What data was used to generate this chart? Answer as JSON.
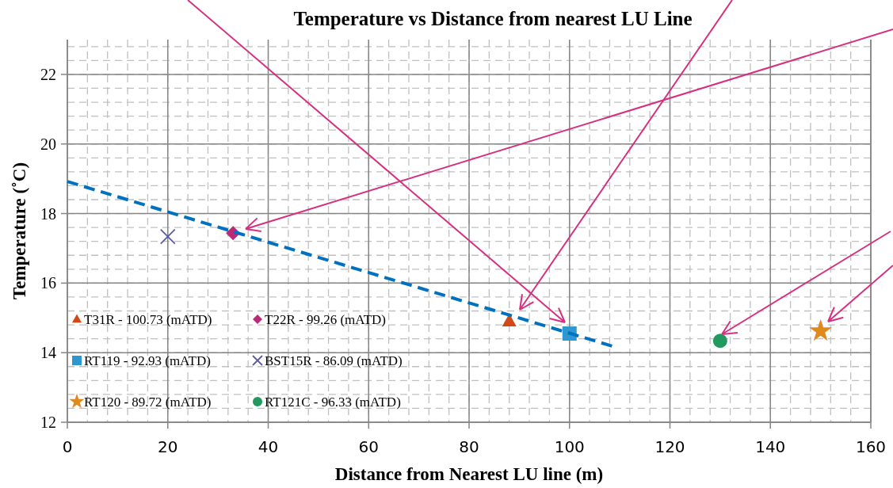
{
  "chart_data": {
    "type": "scatter",
    "title": "Temperature vs Distance from nearest LU Line",
    "xlabel": "Distance from Nearest LU line (m)",
    "ylabel": "Temperature (˚C)",
    "xlim": [
      0,
      160
    ],
    "xticks": [
      0,
      20,
      40,
      60,
      80,
      100,
      120,
      140,
      160
    ],
    "ylim": [
      12,
      23
    ],
    "yticks": [
      12,
      14,
      16,
      18,
      20,
      22
    ],
    "grid": true,
    "legend": "bottom left",
    "series": [
      {
        "name": "T31R - 100.73 (mATD)",
        "color": "#d34817",
        "marker": "triangle",
        "x": [
          88
        ],
        "values": [
          14.9
        ]
      },
      {
        "name": "T22R - 99.26 (mATD)",
        "color": "#bb2a78",
        "marker": "diamond",
        "x": [
          33
        ],
        "values": [
          17.44
        ]
      },
      {
        "name": "RT119 - 92.93 (mATD)",
        "color": "#2e97cf",
        "marker": "square",
        "x": [
          100
        ],
        "values": [
          14.55
        ]
      },
      {
        "name": "BST15R - 86.09 (mATD)",
        "color": "#5b5ba3",
        "marker": "cross",
        "x": [
          20
        ],
        "values": [
          17.34
        ]
      },
      {
        "name": "RT120 - 89.72 (mATD)",
        "color": "#e08a1e",
        "marker": "star",
        "x": [
          150
        ],
        "values": [
          14.62
        ]
      },
      {
        "name": "RT121C - 96.33 (mATD)",
        "color": "#22995e",
        "marker": "circle",
        "x": [
          130
        ],
        "values": [
          14.34
        ]
      },
      {
        "type": "line",
        "color": "#0070c0",
        "line_style": "dashed",
        "marker": "none",
        "x": [
          0,
          108.7
        ],
        "values": [
          18.92,
          14.18
        ]
      }
    ]
  }
}
